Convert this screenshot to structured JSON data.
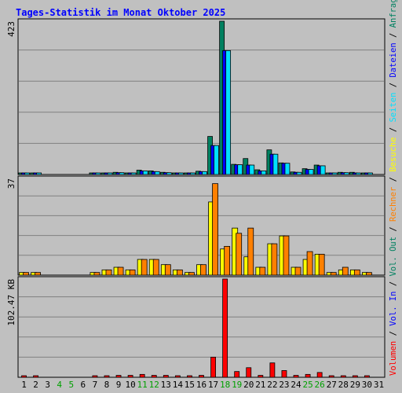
{
  "chart_data": [
    {
      "type": "bar",
      "title": "Tages-Statistik im Monat Oktober 2025",
      "panel": "hits",
      "ymax_label": "423",
      "ylim": [
        0,
        423
      ],
      "days": [
        "1",
        "2",
        "3",
        "4",
        "5",
        "6",
        "7",
        "8",
        "9",
        "10",
        "11",
        "12",
        "13",
        "14",
        "15",
        "16",
        "17",
        "18",
        "19",
        "20",
        "21",
        "22",
        "23",
        "24",
        "25",
        "26",
        "27",
        "28",
        "29",
        "30",
        "31"
      ],
      "weekend_days": [
        "4",
        "5",
        "11",
        "12",
        "18",
        "19",
        "25",
        "26"
      ],
      "series": [
        {
          "name": "Anfragen",
          "color": "#008060",
          "values": [
            3,
            3,
            null,
            null,
            null,
            null,
            3,
            3,
            6,
            4,
            12,
            10,
            6,
            4,
            4,
            9,
            105,
            423,
            28,
            44,
            13,
            68,
            32,
            7,
            16,
            26,
            3,
            6,
            6,
            3,
            null
          ]
        },
        {
          "name": "Dateien",
          "color": "#0000ff",
          "values": [
            3,
            3,
            null,
            null,
            null,
            null,
            3,
            3,
            5,
            4,
            10,
            8,
            5,
            3,
            3,
            8,
            80,
            342,
            27,
            26,
            10,
            56,
            31,
            6,
            14,
            24,
            3,
            5,
            4,
            3,
            null
          ]
        },
        {
          "name": "Seiten",
          "color": "#00e0ff",
          "values": [
            3,
            3,
            null,
            null,
            null,
            null,
            3,
            3,
            5,
            4,
            10,
            8,
            5,
            3,
            3,
            8,
            80,
            342,
            27,
            26,
            10,
            56,
            31,
            6,
            14,
            24,
            3,
            5,
            4,
            3,
            null
          ]
        }
      ]
    },
    {
      "type": "bar",
      "panel": "visits",
      "ymax_label": "37",
      "ylim": [
        0,
        37
      ],
      "series": [
        {
          "name": "Besuche",
          "color": "#ffff00",
          "values": [
            1,
            1,
            null,
            null,
            null,
            null,
            1,
            2,
            3,
            2,
            6,
            6,
            4,
            2,
            1,
            4,
            28,
            10,
            18,
            7,
            3,
            12,
            15,
            3,
            6,
            8,
            1,
            2,
            2,
            1,
            null
          ]
        },
        {
          "name": "Rechner",
          "color": "#ff8000",
          "values": [
            1,
            1,
            null,
            null,
            null,
            null,
            1,
            2,
            3,
            2,
            6,
            6,
            4,
            2,
            1,
            4,
            35,
            11,
            16,
            18,
            3,
            12,
            15,
            3,
            9,
            8,
            1,
            3,
            2,
            1,
            null
          ]
        }
      ]
    },
    {
      "type": "bar",
      "panel": "volume",
      "ymax_label": "102.47 KB",
      "ylim": [
        0,
        102.47
      ],
      "series": [
        {
          "name": "Volumen",
          "color": "#ff0000",
          "values": [
            1,
            1,
            null,
            null,
            null,
            null,
            1,
            1,
            2,
            2,
            3,
            2,
            2,
            1,
            1,
            2,
            21,
            102.47,
            6,
            10,
            2,
            15,
            7,
            2,
            3,
            5,
            1,
            1,
            1,
            1,
            null
          ]
        }
      ]
    }
  ],
  "right_legend": [
    {
      "text": "Volumen",
      "color": "#ff0000"
    },
    {
      "text": " / ",
      "color": "#000000"
    },
    {
      "text": "Vol. In",
      "color": "#0000ff"
    },
    {
      "text": " / ",
      "color": "#000000"
    },
    {
      "text": "Vol. Out",
      "color": "#008060"
    },
    {
      "text": " / ",
      "color": "#000000"
    },
    {
      "text": "Rechner",
      "color": "#ff8000"
    },
    {
      "text": " / ",
      "color": "#000000"
    },
    {
      "text": "Besuche",
      "color": "#ffff00"
    },
    {
      "text": " / ",
      "color": "#000000"
    },
    {
      "text": "Seiten",
      "color": "#00e0ff"
    },
    {
      "text": " / ",
      "color": "#000000"
    },
    {
      "text": "Dateien",
      "color": "#0000ff"
    },
    {
      "text": " / ",
      "color": "#000000"
    },
    {
      "text": "Anfragen",
      "color": "#008060"
    }
  ],
  "colors": {
    "background": "#c0c0c0",
    "title": "#0000ff",
    "weekday_label": "#000000",
    "weekend_label": "#00a000",
    "grid": "#808080"
  }
}
